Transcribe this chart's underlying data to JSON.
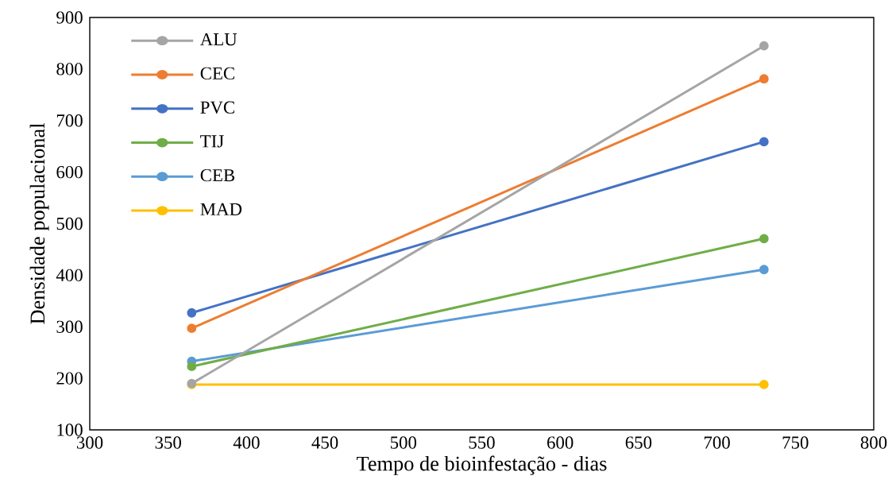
{
  "chart_data": {
    "type": "line",
    "xlabel": "Tempo de bioinfestação - dias",
    "ylabel": "Densidade populacional",
    "x": [
      365,
      730
    ],
    "series": [
      {
        "name": "ALU",
        "color": "#a5a5a5",
        "values": [
          190,
          845
        ]
      },
      {
        "name": "CEC",
        "color": "#ed7d31",
        "values": [
          297,
          781
        ]
      },
      {
        "name": "PVC",
        "color": "#4472c4",
        "values": [
          327,
          659
        ]
      },
      {
        "name": "TIJ",
        "color": "#70ad47",
        "values": [
          223,
          471
        ]
      },
      {
        "name": "CEB",
        "color": "#5b9bd5",
        "values": [
          233,
          411
        ]
      },
      {
        "name": "MAD",
        "color": "#ffc000",
        "values": [
          188,
          188
        ]
      }
    ],
    "xlim": [
      300,
      800
    ],
    "xticks": [
      300,
      350,
      400,
      450,
      500,
      550,
      600,
      650,
      700,
      750,
      800
    ],
    "ylim": [
      100,
      900
    ],
    "yticks": [
      100,
      200,
      300,
      400,
      500,
      600,
      700,
      800,
      900
    ],
    "grid": false,
    "legend": "top left",
    "marker": "circle",
    "line_style": "solid"
  }
}
